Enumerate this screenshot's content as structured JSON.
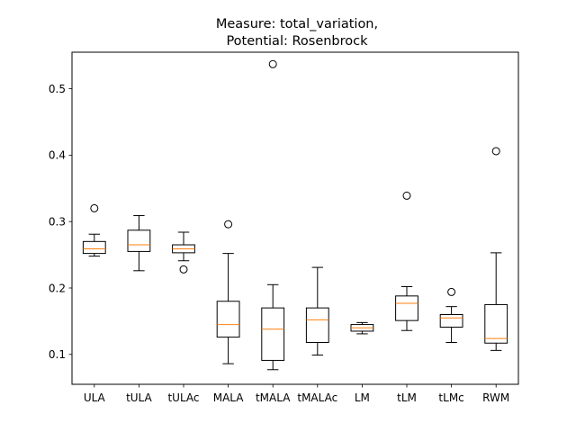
{
  "chart_data": {
    "type": "box",
    "title_lines": [
      "Measure: total_variation,",
      "Potential: Rosenbrock"
    ],
    "xlabel": "",
    "ylabel": "",
    "ylim": [
      0.055,
      0.555
    ],
    "yticks": [
      "0.1",
      "0.2",
      "0.3",
      "0.4",
      "0.5"
    ],
    "ytick_values": [
      0.1,
      0.2,
      0.3,
      0.4,
      0.5
    ],
    "grid": false,
    "colors": {
      "box": "#000000",
      "median": "#ff7f0e",
      "flier": "#000000"
    },
    "categories": [
      "ULA",
      "tULA",
      "tULAc",
      "MALA",
      "tMALA",
      "tMALAc",
      "LM",
      "tLM",
      "tLMc",
      "RWM"
    ],
    "boxes": [
      {
        "whislo": 0.248,
        "q1": 0.252,
        "med": 0.259,
        "q3": 0.27,
        "whishi": 0.281,
        "fliers": [
          0.32
        ]
      },
      {
        "whislo": 0.226,
        "q1": 0.255,
        "med": 0.265,
        "q3": 0.287,
        "whishi": 0.309,
        "fliers": []
      },
      {
        "whislo": 0.241,
        "q1": 0.253,
        "med": 0.259,
        "q3": 0.265,
        "whishi": 0.284,
        "fliers": [
          0.228
        ]
      },
      {
        "whislo": 0.086,
        "q1": 0.126,
        "med": 0.145,
        "q3": 0.18,
        "whishi": 0.252,
        "fliers": [
          0.296
        ]
      },
      {
        "whislo": 0.077,
        "q1": 0.091,
        "med": 0.138,
        "q3": 0.17,
        "whishi": 0.205,
        "fliers": [
          0.537
        ]
      },
      {
        "whislo": 0.099,
        "q1": 0.118,
        "med": 0.152,
        "q3": 0.17,
        "whishi": 0.231,
        "fliers": []
      },
      {
        "whislo": 0.131,
        "q1": 0.135,
        "med": 0.14,
        "q3": 0.145,
        "whishi": 0.148,
        "fliers": []
      },
      {
        "whislo": 0.136,
        "q1": 0.151,
        "med": 0.177,
        "q3": 0.188,
        "whishi": 0.202,
        "fliers": [
          0.339
        ]
      },
      {
        "whislo": 0.118,
        "q1": 0.141,
        "med": 0.155,
        "q3": 0.16,
        "whishi": 0.172,
        "fliers": [
          0.194
        ]
      },
      {
        "whislo": 0.106,
        "q1": 0.117,
        "med": 0.124,
        "q3": 0.175,
        "whishi": 0.253,
        "fliers": [
          0.406
        ]
      }
    ]
  }
}
